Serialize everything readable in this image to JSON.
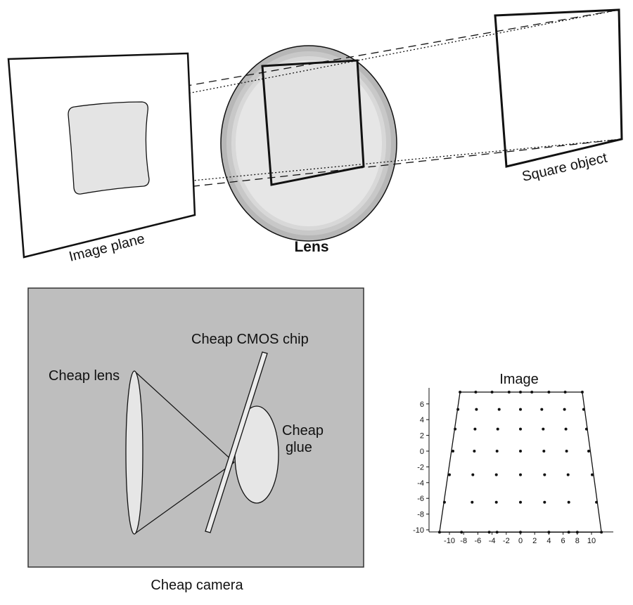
{
  "top_diagram": {
    "image_plane_label": "Image plane",
    "lens_label": "Lens",
    "object_label": "Square object"
  },
  "camera_diagram": {
    "cmos_label": "Cheap CMOS chip",
    "lens_label": "Cheap lens",
    "glue_label_line1": "Cheap",
    "glue_label_line2": "glue",
    "caption": "Cheap camera"
  },
  "chart_data": {
    "type": "scatter",
    "title": "Image",
    "xlim": [
      -11.5,
      11.5
    ],
    "ylim": [
      -10.4,
      7.8
    ],
    "x_ticks": [
      -10,
      -8,
      -6,
      -4,
      -2,
      0,
      2,
      4,
      6,
      8,
      10
    ],
    "y_ticks": [
      6,
      4,
      2,
      0,
      -2,
      -4,
      -6,
      -8,
      -10
    ],
    "outline": [
      [
        -8.5,
        7.5
      ],
      [
        8.7,
        7.5
      ],
      [
        11.4,
        -10.3
      ],
      [
        -11.4,
        -10.3
      ]
    ],
    "rows": [
      {
        "y": 7.5,
        "x": [
          -8.5,
          -6.3,
          -4.0,
          -1.6,
          0.0,
          1.6,
          4.0,
          6.3,
          8.7
        ]
      },
      {
        "y": 5.3,
        "x": [
          -8.8,
          -6.2,
          -3.0,
          0.0,
          3.0,
          6.2,
          8.9
        ]
      },
      {
        "y": 2.8,
        "x": [
          -9.2,
          -6.4,
          -3.2,
          0.0,
          3.2,
          6.4,
          9.3
        ]
      },
      {
        "y": 0.0,
        "x": [
          -9.5,
          -6.5,
          -3.3,
          0.0,
          3.3,
          6.5,
          9.6
        ]
      },
      {
        "y": -3.0,
        "x": [
          -10.0,
          -6.7,
          -3.4,
          0.0,
          3.4,
          6.7,
          10.1
        ]
      },
      {
        "y": -6.5,
        "x": [
          -10.7,
          -6.8,
          -3.4,
          0.0,
          3.4,
          6.8,
          10.7
        ]
      },
      {
        "y": -10.3,
        "x": [
          -11.4,
          -8.3,
          -4.4,
          -3.3,
          0.0,
          4.0,
          6.8,
          8.0,
          11.4
        ]
      }
    ]
  }
}
